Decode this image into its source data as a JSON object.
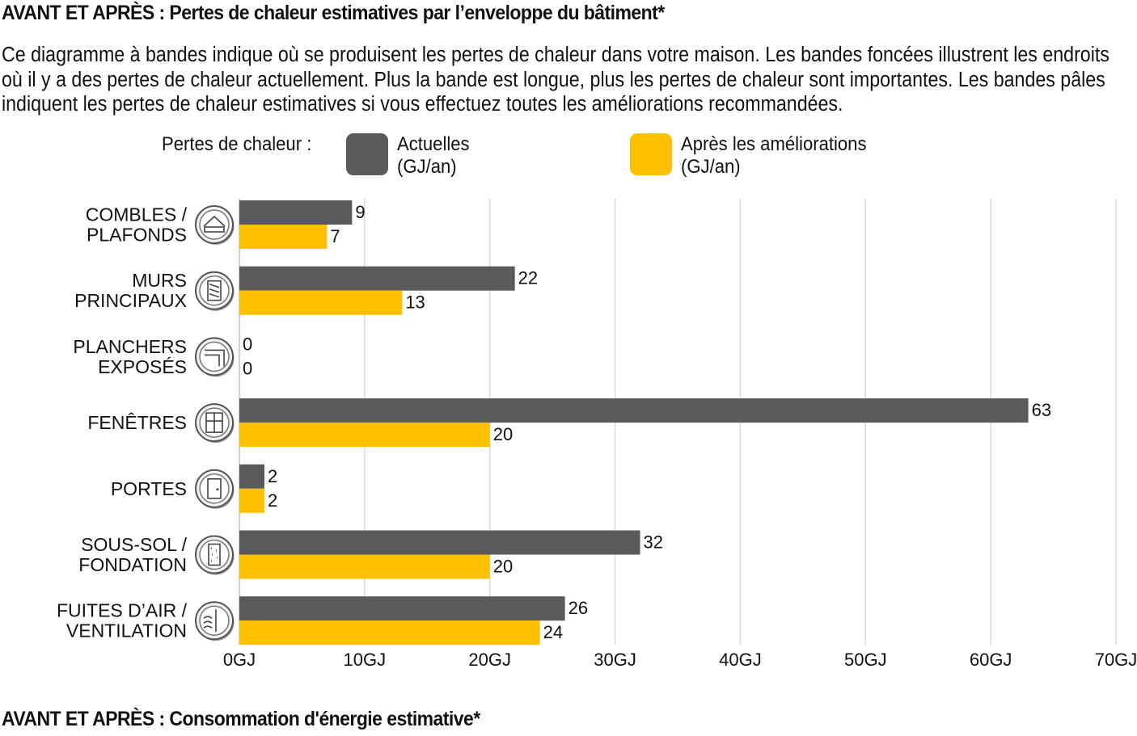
{
  "header": {
    "title": "AVANT ET APRÈS : Pertes de chaleur estimatives par l’enveloppe du bâtiment*",
    "description": "Ce diagramme à bandes indique où se produisent les pertes de chaleur dans votre maison. Les bandes foncées illustrent les endroits où il y a des pertes de chaleur actuellement. Plus la bande est longue, plus les pertes de chaleur sont importantes. Les bandes pâles indiquent les pertes de chaleur estimatives si vous effectuez toutes les améliorations recommandées."
  },
  "legend": {
    "label": "Pertes de chaleur :",
    "items": [
      {
        "line1": "Actuelles",
        "line2": "(GJ/an)",
        "color": "#5a5a5a"
      },
      {
        "line1": "Après les améliorations",
        "line2": "(GJ/an)",
        "color": "#ffc000"
      }
    ]
  },
  "footer": {
    "title": "AVANT ET APRÈS : Consommation d'énergie estimative*"
  },
  "chart_data": {
    "type": "bar",
    "orientation": "horizontal",
    "categories": [
      [
        "COMBLES /",
        "PLAFONDS"
      ],
      [
        "MURS",
        "PRINCIPAUX"
      ],
      [
        "PLANCHERS",
        "EXPOSÉS"
      ],
      [
        "FENÊTRES"
      ],
      [
        "PORTES"
      ],
      [
        "SOUS-SOL /",
        "FONDATION"
      ],
      [
        "FUITES D’AIR /",
        "VENTILATION"
      ]
    ],
    "category_icons": [
      "attic-icon",
      "wall-icon",
      "floor-icon",
      "window-icon",
      "door-icon",
      "foundation-icon",
      "ventilation-icon"
    ],
    "series": [
      {
        "name": "Actuelles (GJ/an)",
        "color": "#5a5a5a",
        "values": [
          9,
          22,
          0,
          63,
          2,
          32,
          26
        ]
      },
      {
        "name": "Après les améliorations (GJ/an)",
        "color": "#ffc000",
        "values": [
          7,
          13,
          0,
          20,
          2,
          20,
          24
        ]
      }
    ],
    "xlim": [
      0,
      70
    ],
    "xticks": [
      0,
      10,
      20,
      30,
      40,
      50,
      60,
      70
    ],
    "tick_suffix": "GJ",
    "grid": true,
    "legend_position": "top"
  }
}
